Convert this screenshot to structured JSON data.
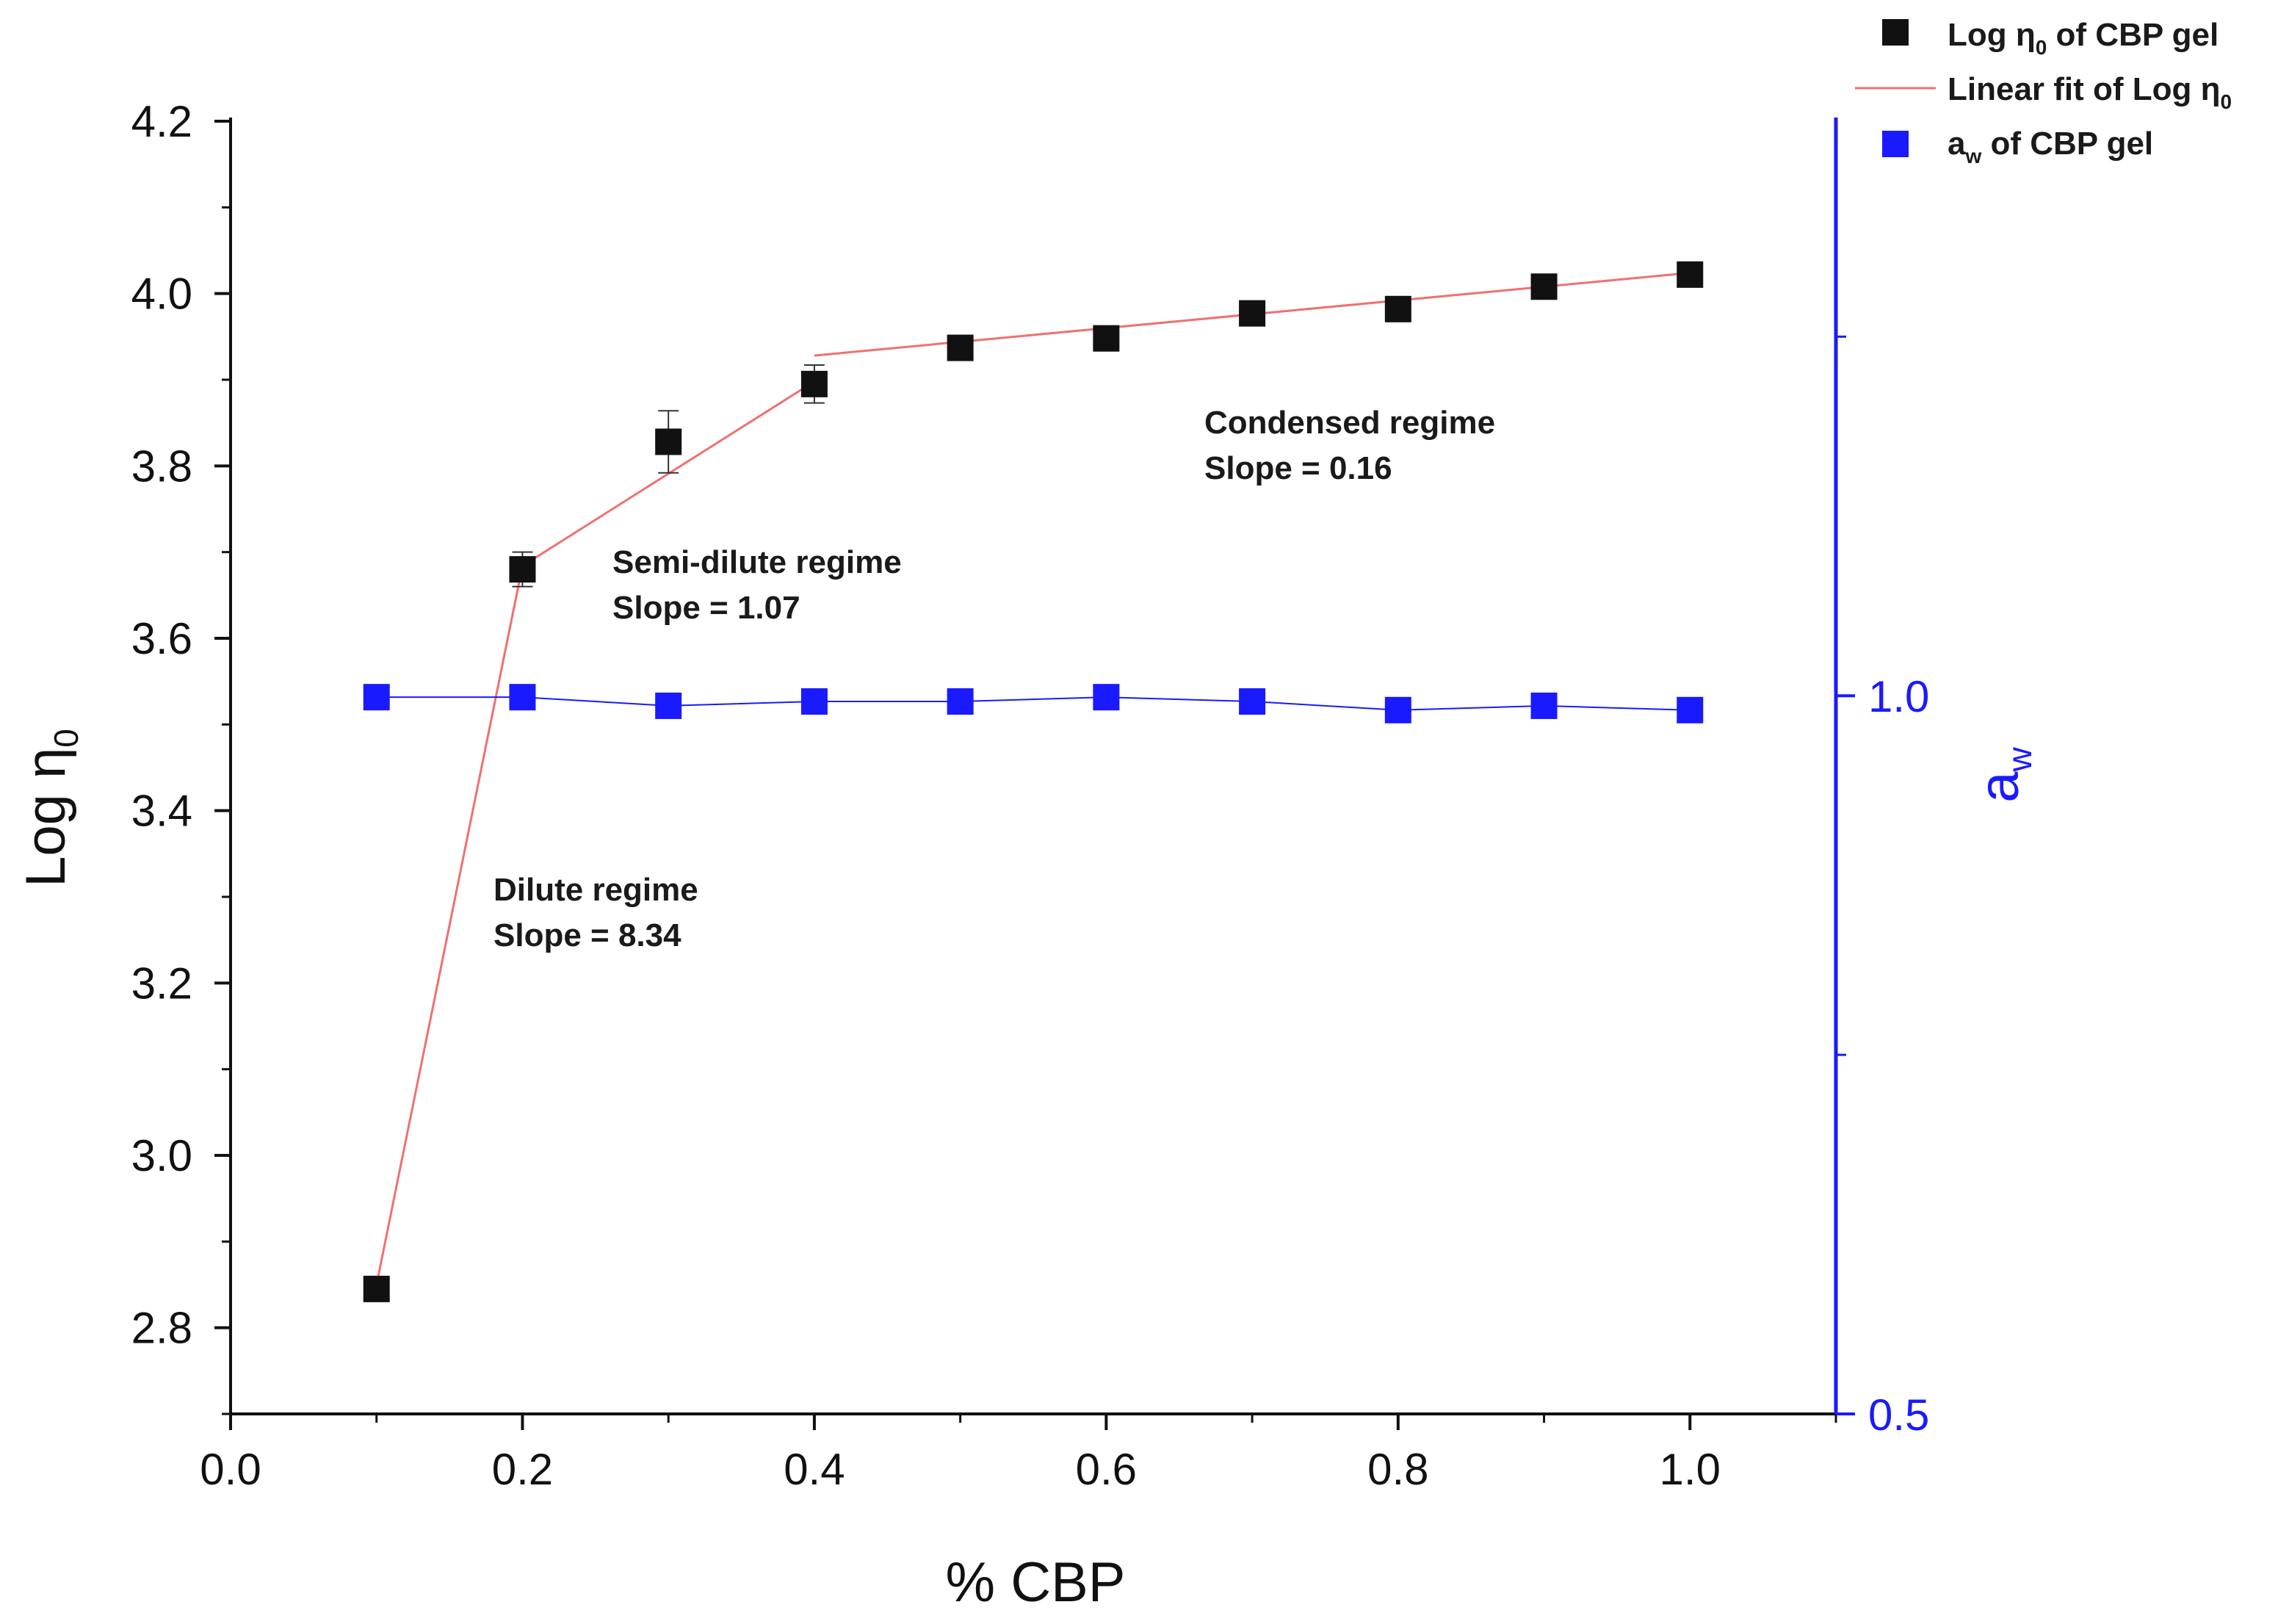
{
  "chart_data": {
    "type": "scatter",
    "xlabel": "% CBP",
    "ylabel": {
      "main": "Log η",
      "sub": "0"
    },
    "y2label": {
      "main": "a",
      "sub": "w"
    },
    "xlim": [
      0.0,
      1.1
    ],
    "ylim": [
      2.7,
      4.2
    ],
    "y2lim": [
      0.5,
      1.4
    ],
    "x_ticks": [
      "0.0",
      "0.2",
      "0.4",
      "0.6",
      "0.8",
      "1.0"
    ],
    "y_ticks": [
      "2.8",
      "3.0",
      "3.2",
      "3.4",
      "3.6",
      "3.8",
      "4.0",
      "4.2"
    ],
    "y2_ticks": [
      "0.5",
      "1.0"
    ],
    "series": [
      {
        "name": "Log η0 of CBP gel",
        "axis": "left",
        "marker": "square",
        "color": "#111111",
        "x": [
          0.1,
          0.2,
          0.3,
          0.4,
          0.5,
          0.6,
          0.7,
          0.8,
          0.9,
          1.0
        ],
        "y": [
          2.845,
          3.68,
          3.828,
          3.895,
          3.937,
          3.948,
          3.977,
          3.982,
          4.008,
          4.022
        ],
        "error": [
          0,
          0.02,
          0.036,
          0.022,
          0,
          0,
          0,
          0,
          0,
          0
        ]
      },
      {
        "name": "Linear fit of Log η0",
        "axis": "left",
        "type": "line",
        "color": "#f07070",
        "segments": [
          {
            "regime": "dilute",
            "x": [
              0.1,
              0.2
            ],
            "y": [
              2.85,
              3.684
            ]
          },
          {
            "regime": "semi-dilute",
            "x": [
              0.2,
              0.4
            ],
            "y": [
              3.684,
              3.898
            ]
          },
          {
            "regime": "condensed",
            "x": [
              0.4,
              1.0
            ],
            "y": [
              3.928,
              4.024
            ]
          }
        ]
      },
      {
        "name": "aw of CBP gel",
        "axis": "right",
        "marker": "square",
        "color": "#1a1aff",
        "x": [
          0.1,
          0.2,
          0.3,
          0.4,
          0.5,
          0.6,
          0.7,
          0.8,
          0.9,
          1.0
        ],
        "y": [
          0.999,
          0.999,
          0.993,
          0.996,
          0.996,
          0.999,
          0.996,
          0.99,
          0.993,
          0.99
        ]
      }
    ],
    "annotations": [
      {
        "line1": "Condensed regime",
        "line2": "Slope = 0.16"
      },
      {
        "line1": "Semi-dilute regime",
        "line2": "Slope = 1.07"
      },
      {
        "line1": "Dilute regime",
        "line2": "Slope = 8.34"
      }
    ],
    "legend": {
      "position": "top-right",
      "entries": [
        {
          "main": "Log η",
          "sub": "0",
          "tail": " of CBP gel"
        },
        {
          "main": "Linear fit of Log η",
          "sub": "0",
          "tail": ""
        },
        {
          "main": "a",
          "sub": "w",
          "tail": " of CBP gel"
        }
      ]
    },
    "colors": {
      "left_axis": "#111111",
      "right_axis": "#1a1aff",
      "fit_line": "#f07070"
    }
  }
}
